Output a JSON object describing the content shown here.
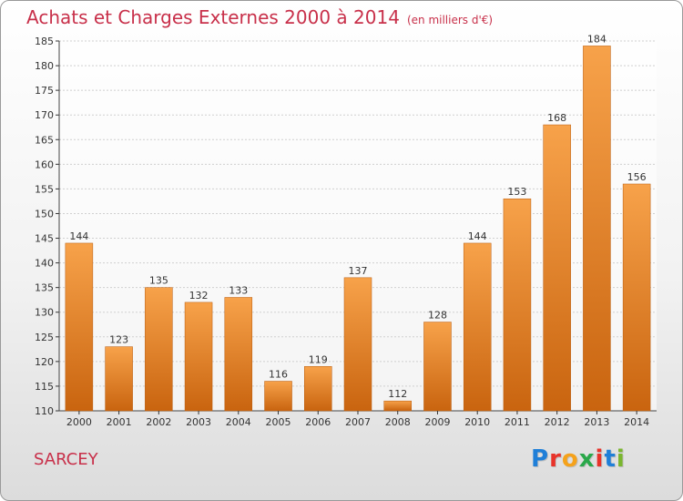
{
  "header": {
    "title": "Achats et Charges Externes 2000 à 2014",
    "subtitle": "(en milliers d'€)"
  },
  "footer": {
    "region": "SARCEY",
    "brand_letters": [
      "P",
      "r",
      "o",
      "x",
      "i",
      "t",
      "i"
    ],
    "brand_colors": [
      "#1f7fd8",
      "#e8332a",
      "#f5a21b",
      "#2aa84a",
      "#e8332a",
      "#1f7fd8",
      "#7ab62f"
    ]
  },
  "colors": {
    "bar_top": "#f7a24a",
    "bar_bottom": "#c9640f",
    "accent": "#c8304a"
  },
  "chart_data": {
    "type": "bar",
    "title": "Achats et Charges Externes 2000 à 2014",
    "subtitle": "(en milliers d'€)",
    "categories": [
      "2000",
      "2001",
      "2002",
      "2003",
      "2004",
      "2005",
      "2006",
      "2007",
      "2008",
      "2009",
      "2010",
      "2011",
      "2012",
      "2013",
      "2014"
    ],
    "values": [
      144,
      123,
      135,
      132,
      133,
      116,
      119,
      137,
      112,
      128,
      144,
      153,
      168,
      184,
      156
    ],
    "ylim": [
      110,
      185
    ],
    "yticks": [
      110,
      115,
      120,
      125,
      130,
      135,
      140,
      145,
      150,
      155,
      160,
      165,
      170,
      175,
      180,
      185
    ],
    "grid": true,
    "legend": "none"
  }
}
